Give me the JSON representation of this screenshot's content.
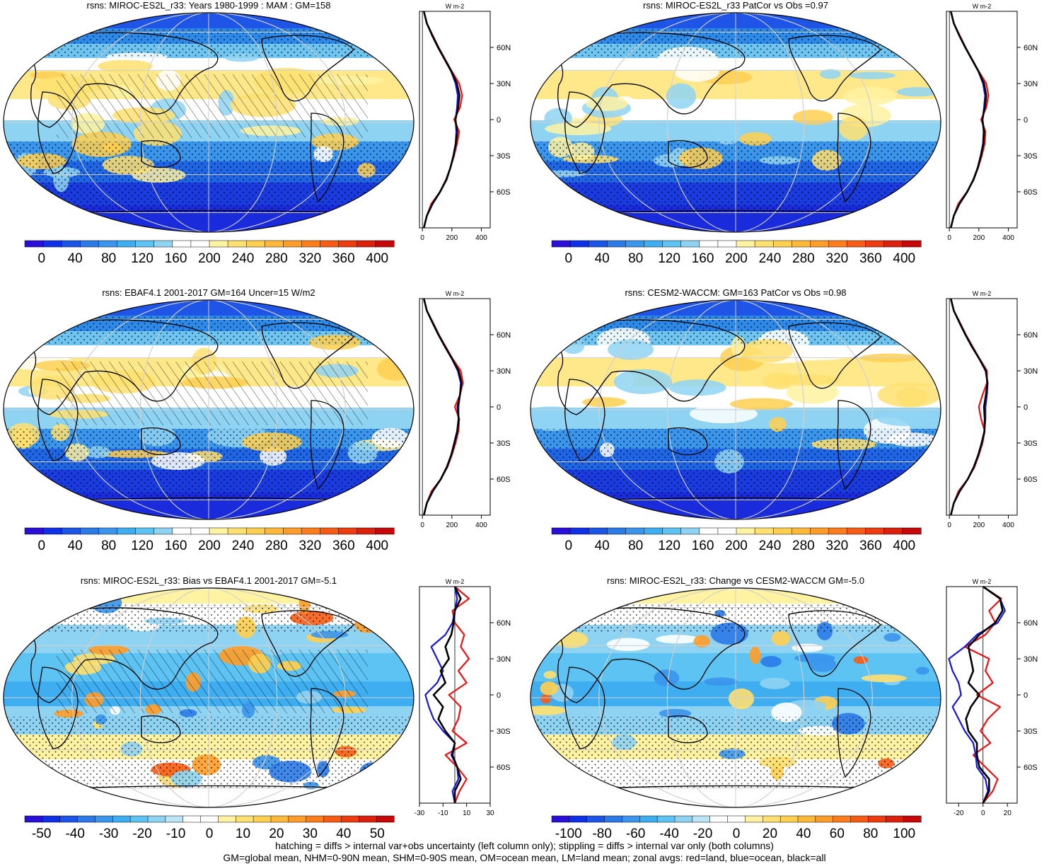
{
  "footnotes": [
    "hatching = diffs > internal var+obs uncertainty (left column only); stippling = diffs > internal var only (both columns)",
    "GM=global mean, NHM=0-90N mean, SHM=0-90S mean, OM=ocean mean, LM=land mean; zonal avgs: red=land, blue=ocean, black=all"
  ],
  "colors": {
    "land": "#ee1111",
    "ocean": "#1515dd",
    "all": "#000000"
  },
  "panels": [
    {
      "id": "p1",
      "title": "rsns: MIROC-ES2L_r33: Years 1980-1999 : MAM : GM=158",
      "kind": "abs",
      "colorbar": [
        "0",
        "40",
        "80",
        "120",
        "160",
        "200",
        "240",
        "280",
        "320",
        "360",
        "400"
      ],
      "hatching": true,
      "stippling": true
    },
    {
      "id": "p2",
      "title": "rsns: MIROC-ES2L_r33 PatCor vs Obs =0.97",
      "kind": "abs",
      "colorbar": [
        "0",
        "40",
        "80",
        "120",
        "160",
        "200",
        "240",
        "280",
        "320",
        "360",
        "400"
      ],
      "hatching": false,
      "stippling": true
    },
    {
      "id": "p3",
      "title": "rsns: EBAF4.1 2001-2017 GM=164 Uncer=15 W/m2",
      "kind": "abs",
      "colorbar": [
        "0",
        "40",
        "80",
        "120",
        "160",
        "200",
        "240",
        "280",
        "320",
        "360",
        "400"
      ],
      "hatching": true,
      "stippling": true
    },
    {
      "id": "p4",
      "title": "rsns: CESM2-WACCM: GM=163 PatCor vs Obs =0.98",
      "kind": "abs",
      "colorbar": [
        "0",
        "40",
        "80",
        "120",
        "160",
        "200",
        "240",
        "280",
        "320",
        "360",
        "400"
      ],
      "hatching": false,
      "stippling": true
    },
    {
      "id": "p5",
      "title": "rsns: MIROC-ES2L_r33: Bias vs EBAF4.1 2001-2017 GM=-5.1",
      "kind": "diff",
      "colorbar": [
        "-50",
        "-40",
        "-30",
        "-20",
        "-10",
        "0",
        "10",
        "20",
        "30",
        "40",
        "50"
      ],
      "hatching": true,
      "stippling": true
    },
    {
      "id": "p6",
      "title": "rsns: MIROC-ES2L_r33: Change vs CESM2-WACCM GM=-5.0",
      "kind": "diff",
      "colorbar": [
        "-100",
        "-80",
        "-60",
        "-40",
        "-20",
        "0",
        "20",
        "40",
        "60",
        "80",
        "100"
      ],
      "hatching": false,
      "stippling": true
    }
  ],
  "chart_data": [
    {
      "type": "line",
      "panel": "p1",
      "title": "rsns: MIROC-ES2L_r33: Years 1980-1999 : MAM : GM=158",
      "xlabel": "W m-2",
      "ylabel": "",
      "x_ticks": [
        "0",
        "200",
        "400"
      ],
      "y_ticks": [
        "60N",
        "30N",
        "0",
        "30S",
        "60S"
      ],
      "xlim": [
        -20,
        460
      ],
      "ylim": [
        -90,
        90
      ],
      "y": [
        -90,
        -80,
        -70,
        -60,
        -50,
        -40,
        -30,
        -20,
        -10,
        0,
        10,
        20,
        30,
        40,
        50,
        60,
        70,
        80,
        90
      ],
      "series": [
        {
          "name": "land",
          "x": [
            10,
            30,
            60,
            120,
            165,
            190,
            215,
            235,
            250,
            215,
            255,
            270,
            250,
            200,
            155,
            110,
            70,
            30,
            10
          ]
        },
        {
          "name": "ocean",
          "x": [
            10,
            30,
            70,
            120,
            160,
            190,
            210,
            225,
            230,
            225,
            235,
            240,
            225,
            195,
            150,
            105,
            65,
            30,
            10
          ]
        },
        {
          "name": "all",
          "x": [
            10,
            30,
            68,
            120,
            162,
            190,
            211,
            227,
            236,
            224,
            242,
            252,
            234,
            197,
            152,
            107,
            67,
            30,
            10
          ]
        }
      ]
    },
    {
      "type": "line",
      "panel": "p2",
      "title": "rsns: MIROC-ES2L_r33 PatCor vs Obs =0.97",
      "xlabel": "W m-2",
      "ylabel": "",
      "x_ticks": [
        "0",
        "200",
        "400"
      ],
      "y_ticks": [
        "60N",
        "30N",
        "0",
        "30S",
        "60S"
      ],
      "xlim": [
        -20,
        460
      ],
      "ylim": [
        -90,
        90
      ],
      "y": [
        -90,
        -80,
        -70,
        -60,
        -50,
        -40,
        -30,
        -20,
        -10,
        0,
        10,
        20,
        30,
        40,
        50,
        60,
        70,
        80,
        90
      ],
      "series": [
        {
          "name": "land",
          "x": [
            10,
            30,
            60,
            120,
            165,
            195,
            220,
            240,
            245,
            215,
            250,
            265,
            250,
            200,
            155,
            110,
            70,
            30,
            10
          ]
        },
        {
          "name": "ocean",
          "x": [
            10,
            30,
            70,
            122,
            162,
            192,
            212,
            228,
            232,
            225,
            235,
            242,
            228,
            197,
            152,
            107,
            66,
            30,
            10
          ]
        },
        {
          "name": "all",
          "x": [
            10,
            30,
            68,
            121,
            163,
            193,
            214,
            231,
            236,
            224,
            240,
            250,
            235,
            198,
            153,
            108,
            67,
            30,
            10
          ]
        }
      ]
    },
    {
      "type": "line",
      "panel": "p3",
      "title": "rsns: EBAF4.1 2001-2017 GM=164 Uncer=15 W/m2",
      "xlabel": "W m-2",
      "ylabel": "",
      "x_ticks": [
        "0",
        "200",
        "400"
      ],
      "y_ticks": [
        "60N",
        "30N",
        "0",
        "30S",
        "60S"
      ],
      "xlim": [
        -20,
        460
      ],
      "ylim": [
        -90,
        90
      ],
      "y": [
        -90,
        -80,
        -70,
        -60,
        -50,
        -40,
        -30,
        -20,
        -10,
        0,
        10,
        20,
        30,
        40,
        50,
        60,
        70,
        80,
        90
      ],
      "series": [
        {
          "name": "land",
          "x": [
            10,
            30,
            62,
            125,
            170,
            200,
            225,
            245,
            250,
            220,
            255,
            275,
            260,
            205,
            158,
            112,
            72,
            30,
            10
          ]
        },
        {
          "name": "ocean",
          "x": [
            10,
            30,
            72,
            125,
            165,
            195,
            215,
            235,
            245,
            245,
            255,
            260,
            240,
            200,
            152,
            108,
            68,
            30,
            10
          ]
        },
        {
          "name": "all",
          "x": [
            10,
            30,
            70,
            125,
            166,
            196,
            218,
            238,
            246,
            238,
            255,
            265,
            246,
            201,
            154,
            109,
            69,
            30,
            10
          ]
        }
      ]
    },
    {
      "type": "line",
      "panel": "p4",
      "title": "rsns: CESM2-WACCM: GM=163 PatCor vs Obs =0.98",
      "xlabel": "W m-2",
      "ylabel": "",
      "x_ticks": [
        "0",
        "200",
        "400"
      ],
      "y_ticks": [
        "60N",
        "30N",
        "0",
        "30S",
        "60S"
      ],
      "xlim": [
        -20,
        460
      ],
      "ylim": [
        -90,
        90
      ],
      "y": [
        -90,
        -80,
        -70,
        -60,
        -50,
        -40,
        -30,
        -20,
        -10,
        0,
        10,
        20,
        30,
        40,
        50,
        60,
        70,
        80,
        90
      ],
      "series": [
        {
          "name": "land",
          "x": [
            10,
            30,
            62,
            125,
            170,
            200,
            225,
            240,
            215,
            200,
            225,
            255,
            255,
            205,
            158,
            112,
            72,
            30,
            10
          ]
        },
        {
          "name": "ocean",
          "x": [
            10,
            30,
            72,
            125,
            165,
            195,
            218,
            238,
            245,
            245,
            255,
            260,
            245,
            202,
            152,
            108,
            68,
            30,
            10
          ]
        },
        {
          "name": "all",
          "x": [
            10,
            30,
            70,
            125,
            166,
            196,
            220,
            238,
            240,
            235,
            248,
            258,
            248,
            203,
            154,
            109,
            69,
            30,
            10
          ]
        }
      ]
    },
    {
      "type": "line",
      "panel": "p5",
      "title": "rsns: MIROC-ES2L_r33: Bias vs EBAF4.1 2001-2017 GM=-5.1",
      "xlabel": "W m-2",
      "ylabel": "",
      "x_ticks": [
        "-30",
        "-10",
        "10",
        "30"
      ],
      "y_ticks": [
        "60N",
        "30N",
        "0",
        "30S",
        "60S"
      ],
      "xlim": [
        -30,
        30
      ],
      "ylim": [
        -90,
        90
      ],
      "y": [
        -90,
        -80,
        -70,
        -60,
        -50,
        -40,
        -30,
        -20,
        -10,
        0,
        10,
        20,
        30,
        40,
        50,
        60,
        70,
        80,
        90
      ],
      "series": [
        {
          "name": "land",
          "x": [
            0,
            4,
            10,
            2,
            -8,
            10,
            -2,
            3,
            5,
            -5,
            10,
            3,
            12,
            5,
            8,
            0,
            -2,
            12,
            0
          ]
        },
        {
          "name": "ocean",
          "x": [
            0,
            -2,
            3,
            2,
            -3,
            0,
            -10,
            -18,
            -22,
            -25,
            -15,
            -10,
            -15,
            -20,
            -8,
            -2,
            0,
            2,
            0
          ]
        },
        {
          "name": "all",
          "x": [
            0,
            0,
            5,
            2,
            -2,
            0,
            -8,
            -14,
            -10,
            -18,
            -8,
            -12,
            -5,
            -8,
            -3,
            -1,
            0,
            5,
            0
          ]
        }
      ]
    },
    {
      "type": "line",
      "panel": "p6",
      "title": "rsns: MIROC-ES2L_r33: Change vs CESM2-WACCM GM=-5.0",
      "xlabel": "W m-2",
      "ylabel": "",
      "x_ticks": [
        "-20",
        "0",
        "20"
      ],
      "y_ticks": [
        "60N",
        "30N",
        "0",
        "30S",
        "60S"
      ],
      "xlim": [
        -30,
        28
      ],
      "ylim": [
        -90,
        90
      ],
      "y": [
        -90,
        -80,
        -70,
        -60,
        -50,
        -40,
        -30,
        -20,
        -10,
        0,
        10,
        20,
        30,
        40,
        50,
        60,
        70,
        80,
        90
      ],
      "series": [
        {
          "name": "land",
          "x": [
            0,
            8,
            12,
            2,
            -8,
            6,
            -2,
            4,
            14,
            -5,
            8,
            2,
            5,
            -15,
            2,
            10,
            5,
            15,
            0
          ]
        },
        {
          "name": "ocean",
          "x": [
            0,
            4,
            2,
            -5,
            -6,
            -8,
            -15,
            -20,
            -25,
            -18,
            -20,
            -25,
            -28,
            -15,
            -5,
            12,
            18,
            14,
            0
          ]
        },
        {
          "name": "all",
          "x": [
            0,
            5,
            5,
            -3,
            -5,
            -5,
            -12,
            -14,
            -10,
            -3,
            -12,
            -8,
            -10,
            -12,
            -3,
            10,
            16,
            14,
            0
          ]
        }
      ]
    }
  ]
}
